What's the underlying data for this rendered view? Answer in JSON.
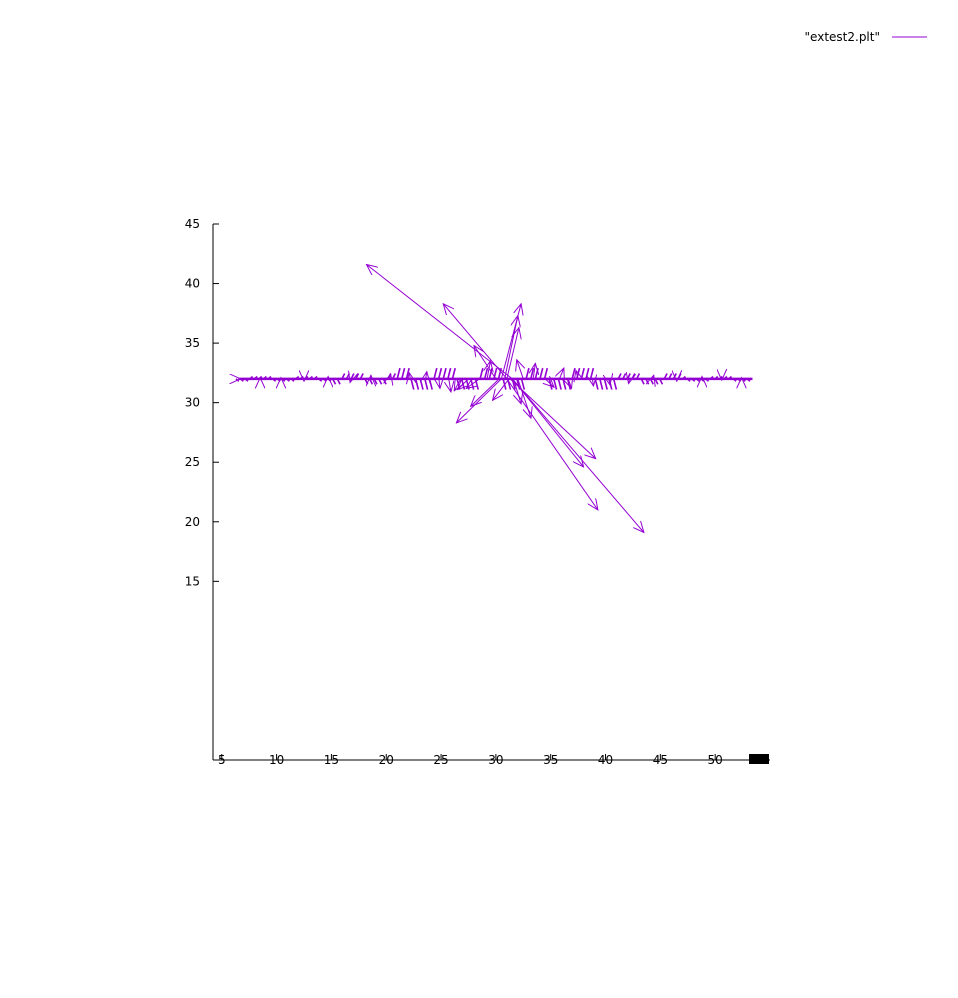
{
  "chart_data": {
    "type": "vector_field",
    "title": "",
    "xlabel": "",
    "ylabel": "",
    "legend": {
      "entries": [
        "\"extest2.plt\""
      ],
      "placement": "top-right"
    },
    "series_color": "#9400d3",
    "axis_color": "#000000",
    "xlim": [
      4.2,
      55
    ],
    "ylim": [
      0,
      45
    ],
    "x_ticks": [
      5,
      10,
      15,
      20,
      25,
      30,
      35,
      40,
      45,
      50
    ],
    "y_ticks": [
      15,
      20,
      25,
      30,
      35,
      40,
      45
    ],
    "grid": false,
    "baseline_y": 32,
    "vectors": [
      {
        "x": 31.5,
        "y": 32,
        "dx": -13.3,
        "dy": 9.6
      },
      {
        "x": 31.0,
        "y": 32,
        "dx": -5.8,
        "dy": 6.3
      },
      {
        "x": 31.5,
        "y": 32,
        "dx": 12.0,
        "dy": -12.9
      },
      {
        "x": 31.0,
        "y": 32,
        "dx": 8.3,
        "dy": -11.0
      },
      {
        "x": 31.3,
        "y": 32,
        "dx": 7.8,
        "dy": -6.7
      },
      {
        "x": 31.5,
        "y": 32,
        "dx": 6.5,
        "dy": -7.4
      },
      {
        "x": 30.5,
        "y": 32,
        "dx": 1.8,
        "dy": 6.3
      },
      {
        "x": 30.8,
        "y": 32,
        "dx": 1.2,
        "dy": 5.3
      },
      {
        "x": 31.0,
        "y": 32,
        "dx": 1.1,
        "dy": 4.3
      },
      {
        "x": 30.5,
        "y": 32,
        "dx": -4.1,
        "dy": -3.7
      },
      {
        "x": 30.3,
        "y": 32,
        "dx": -2.6,
        "dy": -2.3
      },
      {
        "x": 31.2,
        "y": 32,
        "dx": -1.5,
        "dy": -1.8
      },
      {
        "x": 30.0,
        "y": 32,
        "dx": -2.0,
        "dy": 2.8
      },
      {
        "x": 31.6,
        "y": 32,
        "dx": 0.7,
        "dy": -2.1
      },
      {
        "x": 32.0,
        "y": 32,
        "dx": 1.2,
        "dy": -3.3
      },
      {
        "x": 29.2,
        "y": 32,
        "dx": 0.3,
        "dy": 1.5
      },
      {
        "x": 32.5,
        "y": 32,
        "dx": -0.6,
        "dy": 1.6
      },
      {
        "x": 33.4,
        "y": 32,
        "dx": 0.2,
        "dy": 1.3
      },
      {
        "x": 28.5,
        "y": 32,
        "dx": -1.2,
        "dy": -0.8
      },
      {
        "x": 27.5,
        "y": 32,
        "dx": -1.0,
        "dy": -0.9
      },
      {
        "x": 34.5,
        "y": 32,
        "dx": 0.8,
        "dy": -0.7
      },
      {
        "x": 26.8,
        "y": 32,
        "dx": -0.6,
        "dy": -1.0
      },
      {
        "x": 35.8,
        "y": 32,
        "dx": 0.4,
        "dy": 0.9
      },
      {
        "x": 25.7,
        "y": 32,
        "dx": 0.2,
        "dy": -1.1
      },
      {
        "x": 36.6,
        "y": 32,
        "dx": 0.3,
        "dy": -0.8
      },
      {
        "x": 24.8,
        "y": 32,
        "dx": 0.1,
        "dy": -0.8
      },
      {
        "x": 37.5,
        "y": 32,
        "dx": -0.2,
        "dy": 0.7
      },
      {
        "x": 23.6,
        "y": 32,
        "dx": 0.1,
        "dy": 0.6
      },
      {
        "x": 38.8,
        "y": 32,
        "dx": 0.1,
        "dy": -0.6
      },
      {
        "x": 22.2,
        "y": 32,
        "dx": -0.1,
        "dy": 0.5
      },
      {
        "x": 40.3,
        "y": 32,
        "dx": 0.1,
        "dy": -0.5
      },
      {
        "x": 20.3,
        "y": 32,
        "dx": 0.1,
        "dy": 0.4
      },
      {
        "x": 42.2,
        "y": 32,
        "dx": -0.1,
        "dy": -0.4
      },
      {
        "x": 18.6,
        "y": 32,
        "dx": 0.0,
        "dy": 0.3
      },
      {
        "x": 44.3,
        "y": 32,
        "dx": 0.1,
        "dy": 0.3
      },
      {
        "x": 16.8,
        "y": 32,
        "dx": -0.1,
        "dy": -0.3
      },
      {
        "x": 46.5,
        "y": 32,
        "dx": 0.0,
        "dy": -0.2
      },
      {
        "x": 14.7,
        "y": 32,
        "dx": 0.0,
        "dy": 0.2
      },
      {
        "x": 48.8,
        "y": 32,
        "dx": 0.0,
        "dy": 0.2
      },
      {
        "x": 12.5,
        "y": 32,
        "dx": 0.0,
        "dy": -0.2
      },
      {
        "x": 50.6,
        "y": 32,
        "dx": 0.0,
        "dy": -0.1
      },
      {
        "x": 10.4,
        "y": 32,
        "dx": 0.0,
        "dy": 0.1
      },
      {
        "x": 52.4,
        "y": 32,
        "dx": 0.0,
        "dy": 0.1
      },
      {
        "x": 8.5,
        "y": 32,
        "dx": 0.0,
        "dy": 0.1
      },
      {
        "x": 6.5,
        "y": 32,
        "dx": 0.2,
        "dy": 0.0
      }
    ]
  }
}
